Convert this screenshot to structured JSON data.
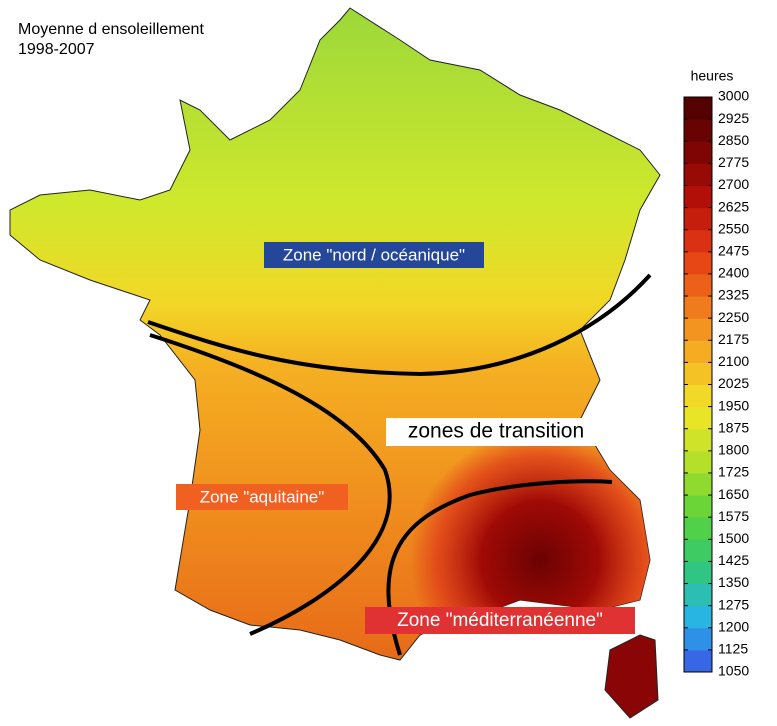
{
  "title": [
    "Moyenne d ensoleillement",
    "1998-2007"
  ],
  "colorbar": {
    "label": "heures",
    "ticks": [
      1050,
      1125,
      1200,
      1275,
      1350,
      1425,
      1500,
      1575,
      1650,
      1725,
      1800,
      1875,
      1950,
      2025,
      2100,
      2175,
      2250,
      2325,
      2400,
      2475,
      2550,
      2625,
      2700,
      2775,
      2850,
      2925,
      3000
    ],
    "colors": [
      "#3c52e6",
      "#28b4e8",
      "#30c878",
      "#5cd23a",
      "#b4e02a",
      "#f0e628",
      "#f6b424",
      "#f07a1c",
      "#e43c14",
      "#b81008",
      "#7a0404",
      "#4a0000"
    ]
  },
  "zones": [
    "Zone \"nord / océanique\"",
    "zones de transition",
    "Zone \"aquitaine\"",
    "Zone \"méditerranéenne\""
  ]
}
